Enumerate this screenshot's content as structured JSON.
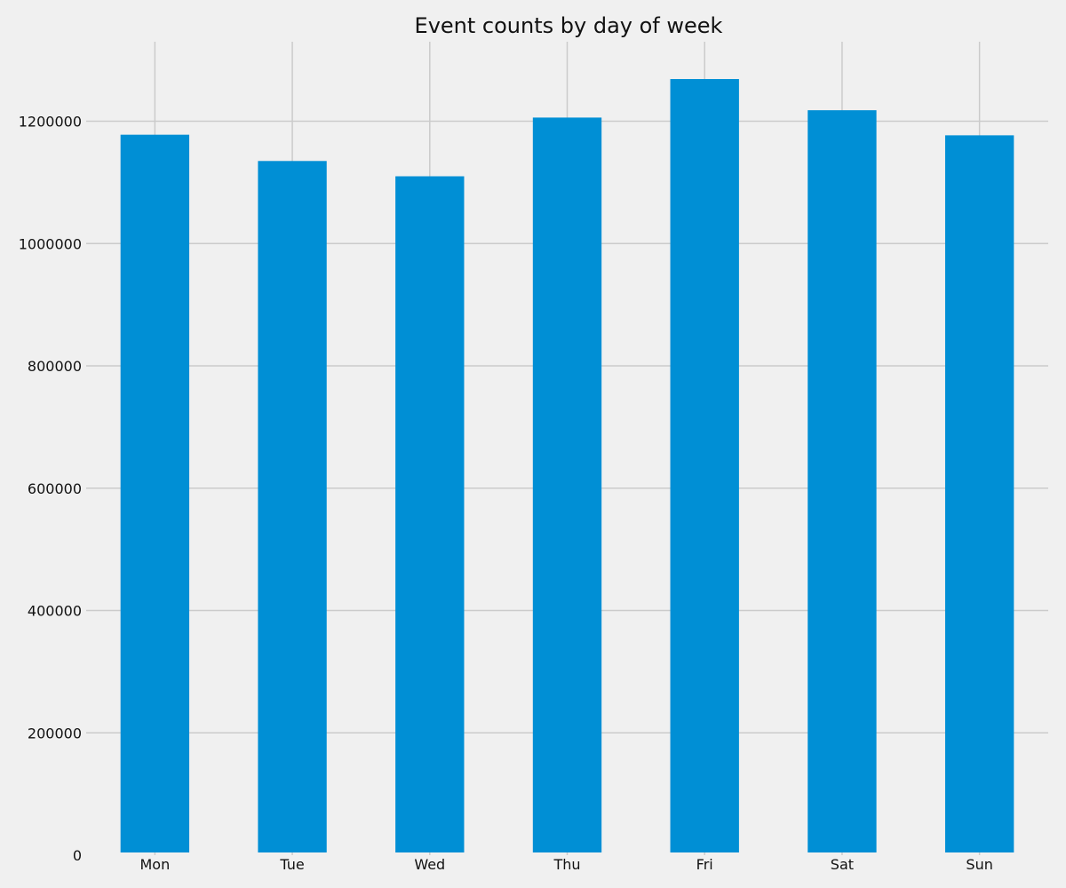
{
  "chart_data": {
    "type": "bar",
    "title": "Event counts by day of week",
    "xlabel": "",
    "ylabel": "",
    "categories": [
      "Mon",
      "Tue",
      "Wed",
      "Thu",
      "Fri",
      "Sat",
      "Sun"
    ],
    "values": [
      1178000,
      1135000,
      1110000,
      1206000,
      1269000,
      1218000,
      1177000
    ],
    "ylim": [
      0,
      1330000
    ],
    "yticks": [
      0,
      200000,
      400000,
      600000,
      800000,
      1000000,
      1200000
    ],
    "ytick_labels": [
      "0",
      "200000",
      "400000",
      "600000",
      "800000",
      "1000000",
      "1200000"
    ],
    "grid": true,
    "bar_color": "#008fd5",
    "background_color": "#f0f0f0",
    "grid_color": "#cbcbcb"
  }
}
